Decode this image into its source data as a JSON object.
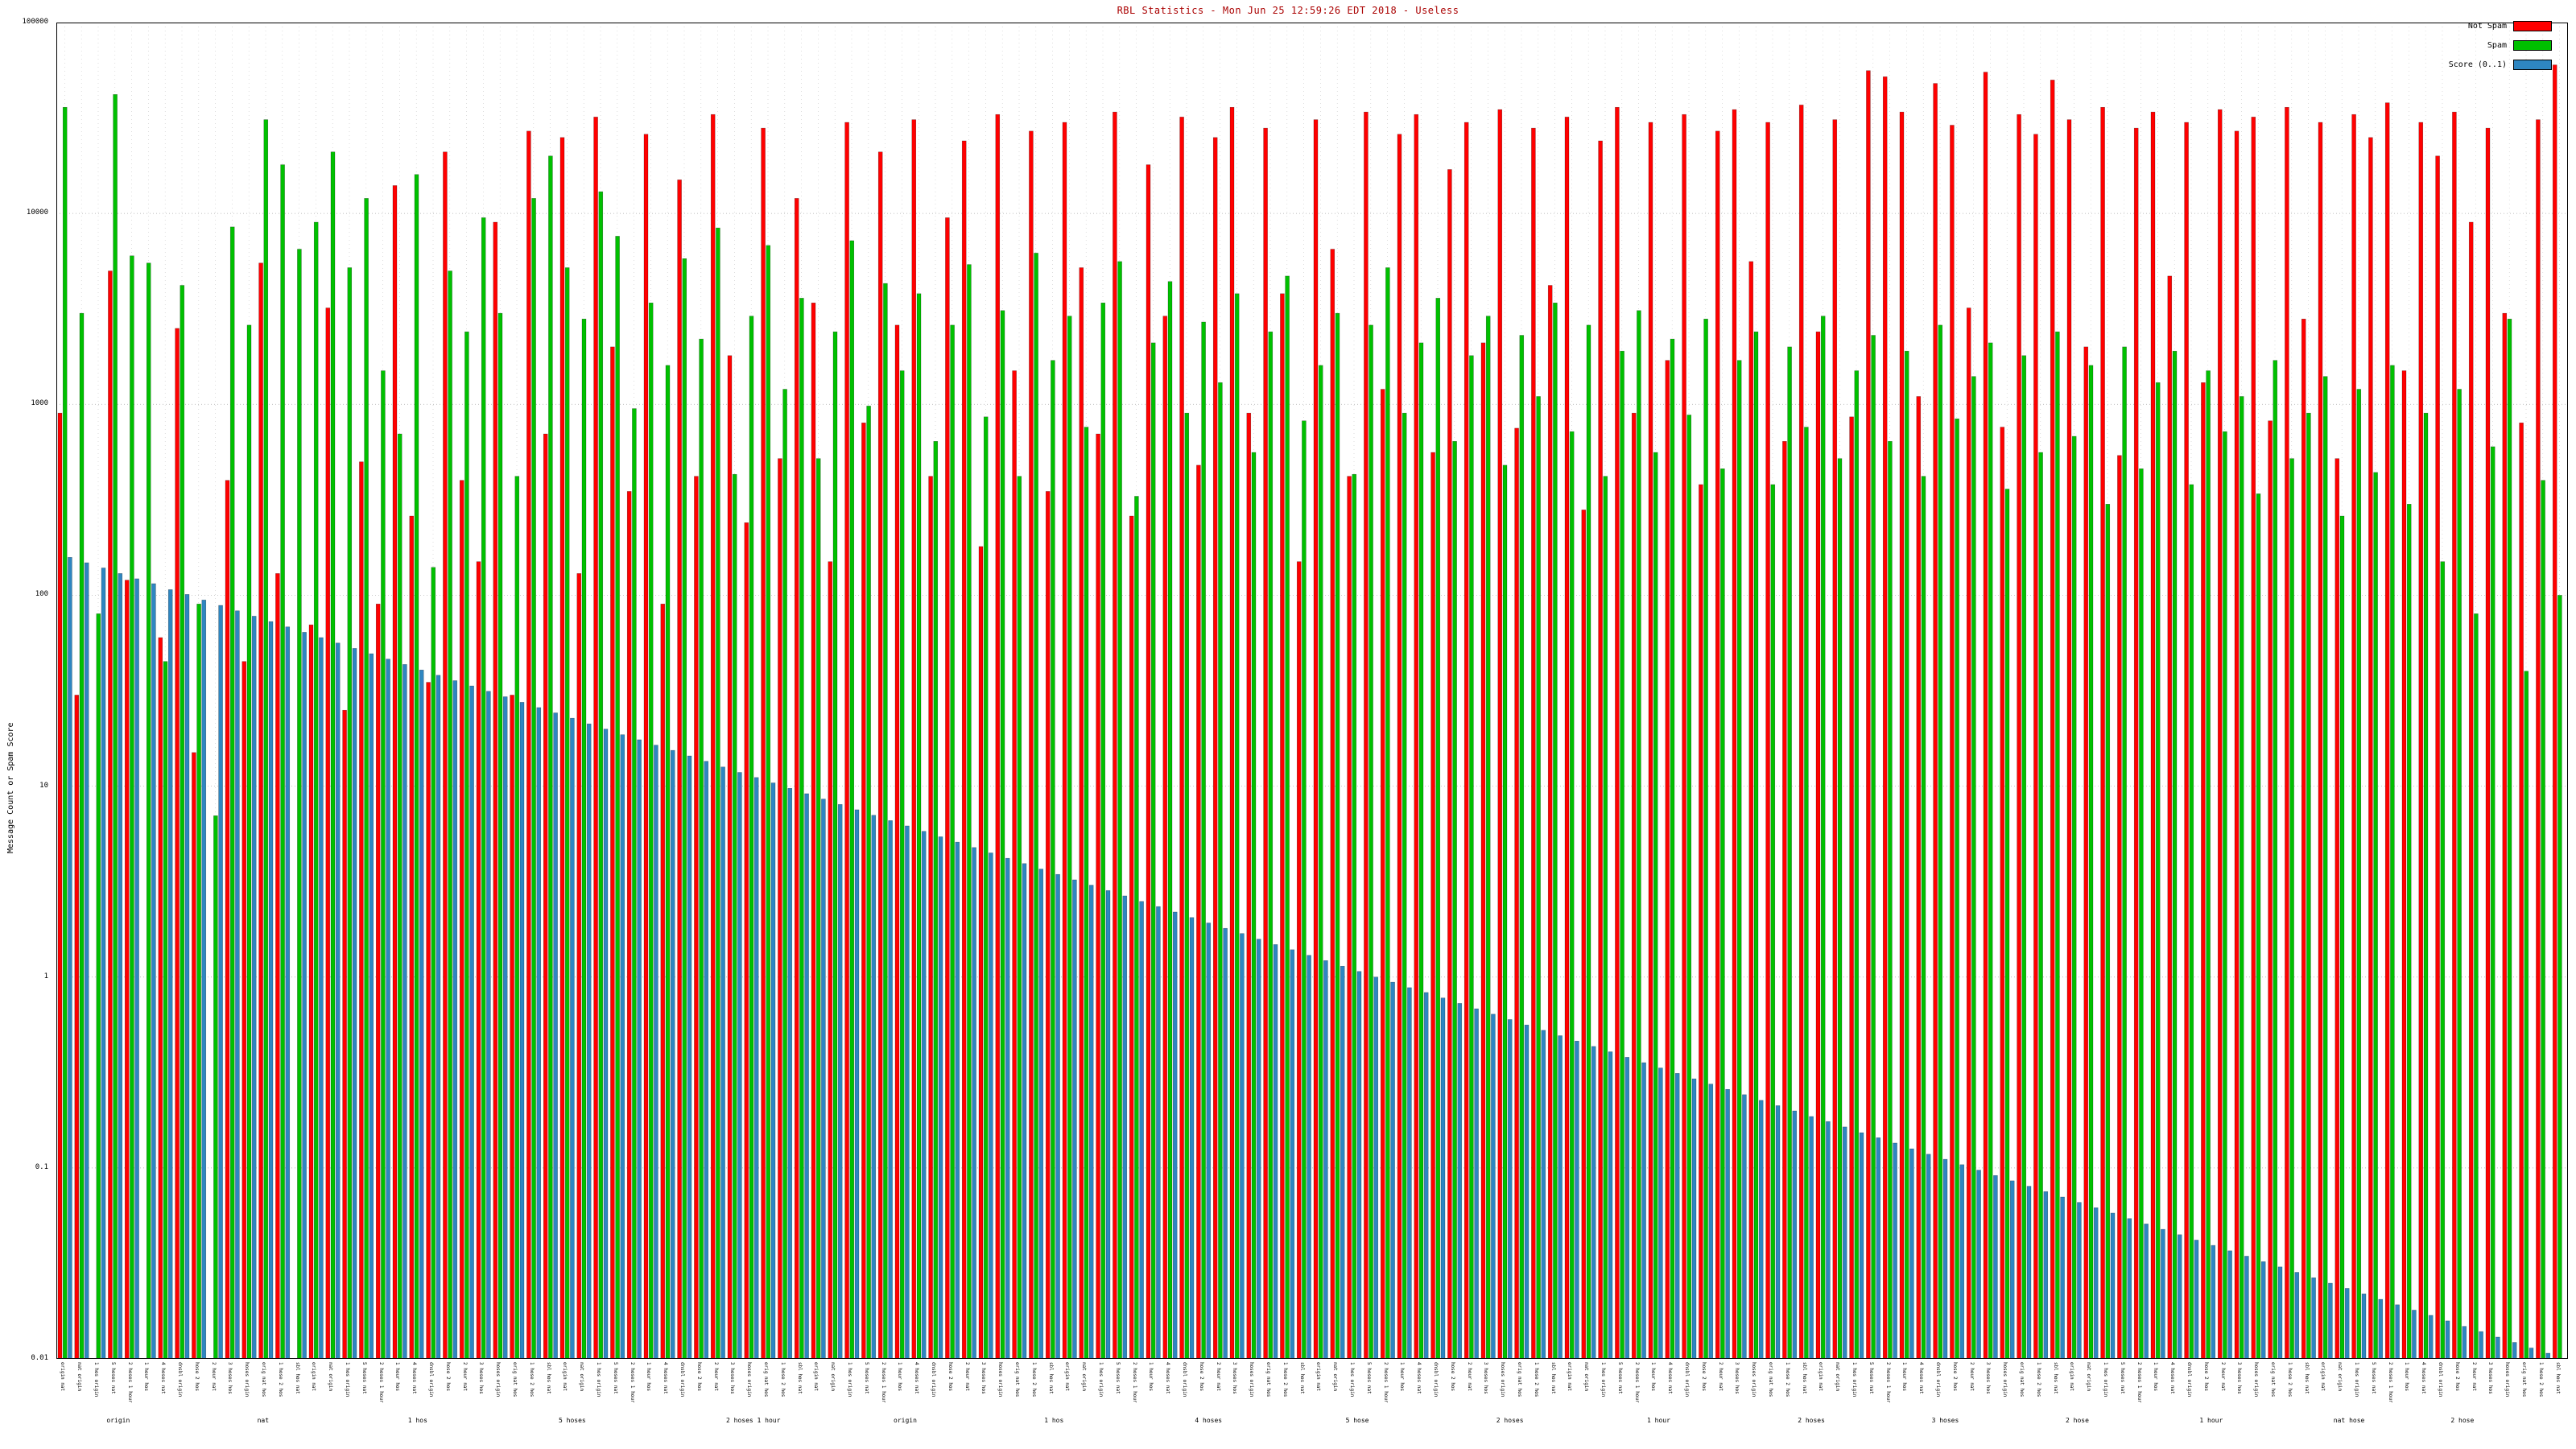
{
  "header": {
    "title": "RBL Statistics - Mon Jun 25 12:59:26 EDT 2018 - Useless"
  },
  "legend": {
    "entries": [
      {
        "label": "Not Spam",
        "color": "#ff0000"
      },
      {
        "label": "Spam",
        "color": "#00c000"
      },
      {
        "label": "Score (0..1)",
        "color": "#2e86c1"
      }
    ]
  },
  "axes": {
    "ylabel": "Message Count or Spam Score",
    "y_ticks": [
      "100000",
      "10000",
      "1000",
      "100",
      "10",
      "1",
      "0.1",
      "0.01"
    ]
  },
  "chart_data": {
    "type": "bar",
    "title": "RBL Statistics - Mon Jun 25 12:59:26 EDT 2018 - Useless",
    "xlabel": "",
    "ylabel": "Message Count or Spam Score",
    "yscale": "log",
    "ylim": [
      0.01,
      100000
    ],
    "grid": "dotted",
    "legend_position": "top-right",
    "categories": [
      "origin nat",
      "nat origin",
      "1 hos origin",
      "5 hoses nat",
      "2 hoses 1 hour",
      "1 hour hos",
      "4 hoses nat",
      "dnsbl origin",
      "hose 2 hos",
      "2 hour nat",
      "3 hoses hos",
      "hoses origin",
      "orig nat hos",
      "1 hose 2 hos",
      "sbl hos nat",
      "origin nat",
      "nat origin",
      "1 hos origin",
      "5 hoses nat",
      "2 hoses 1 hour",
      "1 hour hos",
      "4 hoses nat",
      "dnsbl origin",
      "hose 2 hos",
      "2 hour nat",
      "3 hoses hos",
      "hoses origin",
      "orig nat hos",
      "1 hose 2 hos",
      "sbl hos nat",
      "origin nat",
      "nat origin",
      "1 hos origin",
      "5 hoses nat",
      "2 hoses 1 hour",
      "1 hour hos",
      "4 hoses nat",
      "dnsbl origin",
      "hose 2 hos",
      "2 hour nat",
      "3 hoses hos",
      "hoses origin",
      "orig nat hos",
      "1 hose 2 hos",
      "sbl hos nat",
      "origin nat",
      "nat origin",
      "1 hos origin",
      "5 hoses nat",
      "2 hoses 1 hour",
      "1 hour hos",
      "4 hoses nat",
      "dnsbl origin",
      "hose 2 hos",
      "2 hour nat",
      "3 hoses hos",
      "hoses origin",
      "orig nat hos",
      "1 hose 2 hos",
      "sbl hos nat",
      "origin nat",
      "nat origin",
      "1 hos origin",
      "5 hoses nat",
      "2 hoses 1 hour",
      "1 hour hos",
      "4 hoses nat",
      "dnsbl origin",
      "hose 2 hos",
      "2 hour nat",
      "3 hoses hos",
      "hoses origin",
      "orig nat hos",
      "1 hose 2 hos",
      "sbl hos nat",
      "origin nat",
      "nat origin",
      "1 hos origin",
      "5 hoses nat",
      "2 hoses 1 hour",
      "1 hour hos",
      "4 hoses nat",
      "dnsbl origin",
      "hose 2 hos",
      "2 hour nat",
      "3 hoses hos",
      "hoses origin",
      "orig nat hos",
      "1 hose 2 hos",
      "sbl hos nat",
      "origin nat",
      "nat origin",
      "1 hos origin",
      "5 hoses nat",
      "2 hoses 1 hour",
      "1 hour hos",
      "4 hoses nat",
      "dnsbl origin",
      "hose 2 hos",
      "2 hour nat",
      "3 hoses hos",
      "hoses origin",
      "orig nat hos",
      "1 hose 2 hos",
      "sbl hos nat",
      "origin nat",
      "nat origin",
      "1 hos origin",
      "5 hoses nat",
      "2 hoses 1 hour",
      "1 hour hos",
      "4 hoses nat",
      "dnsbl origin",
      "hose 2 hos",
      "2 hour nat",
      "3 hoses hos",
      "hoses origin",
      "orig nat hos",
      "1 hose 2 hos",
      "sbl hos nat",
      "origin nat",
      "nat origin",
      "1 hos origin",
      "5 hoses nat",
      "2 hoses 1 hour",
      "1 hour hos",
      "4 hoses nat",
      "dnsbl origin",
      "hose 2 hos",
      "2 hour nat",
      "3 hoses hos",
      "hoses origin",
      "orig nat hos",
      "1 hose 2 hos",
      "sbl hos nat",
      "origin nat",
      "nat origin",
      "1 hos origin",
      "5 hoses nat",
      "2 hoses 1 hour",
      "1 hour hos",
      "4 hoses nat",
      "dnsbl origin",
      "hose 2 hos",
      "2 hour nat",
      "3 hoses hos",
      "hoses origin",
      "orig nat hos",
      "1 hose 2 hos",
      "sbl hos nat"
    ],
    "series": [
      {
        "name": "Not Spam",
        "color": "#ff0000",
        "values": [
          900,
          30,
          0,
          5000,
          120,
          0,
          60,
          2500,
          15,
          0,
          400,
          45,
          5500,
          130,
          0,
          70,
          3200,
          25,
          500,
          90,
          14000,
          260,
          35,
          21000,
          400,
          150,
          9000,
          30,
          27000,
          700,
          25000,
          130,
          32000,
          2000,
          350,
          26000,
          90,
          15000,
          420,
          33000,
          1800,
          240,
          28000,
          520,
          12000,
          3400,
          150,
          30000,
          800,
          21000,
          2600,
          31000,
          420,
          9500,
          24000,
          180,
          33000,
          1500,
          27000,
          350,
          30000,
          5200,
          700,
          34000,
          260,
          18000,
          2900,
          32000,
          480,
          25000,
          36000,
          900,
          28000,
          3800,
          150,
          31000,
          6500,
          420,
          34000,
          1200,
          26000,
          33000,
          560,
          17000,
          30000,
          2100,
          35000,
          750,
          28000,
          4200,
          32000,
          280,
          24000,
          36000,
          900,
          30000,
          1700,
          33000,
          380,
          27000,
          35000,
          5600,
          30000,
          640,
          37000,
          2400,
          31000,
          860,
          56000,
          52000,
          34000,
          1100,
          48000,
          29000,
          3200,
          55000,
          760,
          33000,
          26000,
          50000,
          31000,
          2000,
          36000,
          540,
          28000,
          34000,
          4700,
          30000,
          1300,
          35000,
          27000,
          32000,
          820,
          36000,
          2800,
          30000,
          520,
          33000,
          25000,
          38000,
          1500,
          30000,
          20000,
          34000,
          9000,
          28000,
          3000,
          800,
          31000,
          60000
        ]
      },
      {
        "name": "Spam",
        "color": "#00c000",
        "values": [
          36000,
          3000,
          80,
          42000,
          6000,
          5500,
          45,
          4200,
          90,
          7,
          8500,
          2600,
          31000,
          18000,
          6500,
          9000,
          21000,
          5200,
          12000,
          1500,
          700,
          16000,
          140,
          5000,
          2400,
          9500,
          3000,
          420,
          12000,
          20000,
          5200,
          2800,
          13000,
          7600,
          950,
          3400,
          1600,
          5800,
          2200,
          8400,
          430,
          2900,
          6800,
          1200,
          3600,
          520,
          2400,
          7200,
          980,
          4300,
          1500,
          3800,
          640,
          2600,
          5400,
          860,
          3100,
          420,
          6200,
          1700,
          2900,
          760,
          3400,
          5600,
          330,
          2100,
          4400,
          900,
          2700,
          1300,
          3800,
          560,
          2400,
          4700,
          820,
          1600,
          3000,
          430,
          2600,
          5200,
          900,
          2100,
          3600,
          640,
          1800,
          2900,
          480,
          2300,
          1100,
          3400,
          720,
          2600,
          420,
          1900,
          3100,
          560,
          2200,
          880,
          2800,
          460,
          1700,
          2400,
          380,
          2000,
          760,
          2900,
          520,
          1500,
          2300,
          640,
          1900,
          420,
          2600,
          840,
          1400,
          2100,
          360,
          1800,
          560,
          2400,
          680,
          1600,
          300,
          2000,
          460,
          1300,
          1900,
          380,
          1500,
          720,
          1100,
          340,
          1700,
          520,
          900,
          1400,
          260,
          1200,
          440,
          1600,
          300,
          900,
          150,
          1200,
          80,
          600,
          2800,
          40,
          400,
          100
        ]
      },
      {
        "name": "Score (0..1)",
        "color": "#2e86c1",
        "values": [
          158,
          148,
          139,
          130,
          122,
          115,
          107,
          101,
          94.4,
          88.5,
          82.9,
          77.7,
          72.8,
          68.3,
          64.0,
          60.0,
          56.2,
          52.7,
          49.4,
          46.3,
          43.4,
          40.6,
          38.1,
          35.7,
          33.5,
          31.4,
          29.4,
          27.5,
          25.8,
          24.2,
          22.7,
          21.2,
          19.9,
          18.6,
          17.5,
          16.4,
          15.4,
          14.4,
          13.5,
          12.6,
          11.8,
          11.1,
          10.4,
          9.74,
          9.13,
          8.56,
          8.02,
          7.52,
          7.04,
          6.6,
          6.19,
          5.8,
          5.43,
          5.09,
          4.77,
          4.47,
          4.19,
          3.93,
          3.68,
          3.45,
          3.23,
          3.03,
          2.84,
          2.66,
          2.49,
          2.34,
          2.19,
          2.05,
          1.92,
          1.8,
          1.69,
          1.58,
          1.48,
          1.39,
          1.3,
          1.22,
          1.14,
          1.07,
          1.0,
          0.94,
          0.88,
          0.83,
          0.777,
          0.728,
          0.682,
          0.639,
          0.599,
          0.561,
          0.526,
          0.493,
          0.462,
          0.433,
          0.406,
          0.38,
          0.356,
          0.334,
          0.313,
          0.293,
          0.275,
          0.258,
          0.242,
          0.226,
          0.212,
          0.199,
          0.186,
          0.175,
          0.164,
          0.153,
          0.144,
          0.135,
          0.126,
          0.118,
          0.111,
          0.104,
          0.0974,
          0.0913,
          0.0856,
          0.0802,
          0.0752,
          0.0704,
          0.066,
          0.0619,
          0.058,
          0.0543,
          0.0509,
          0.0477,
          0.0447,
          0.0419,
          0.0393,
          0.0368,
          0.0345,
          0.0323,
          0.0303,
          0.0284,
          0.0266,
          0.0249,
          0.0234,
          0.0219,
          0.0205,
          0.0192,
          0.018,
          0.0169,
          0.0158,
          0.0148,
          0.0139,
          0.013,
          0.0122,
          0.0114,
          0.0107,
          0.01
        ]
      }
    ],
    "x2_labels": [
      {
        "i": 3,
        "t": "origin"
      },
      {
        "i": 12,
        "t": "nat"
      },
      {
        "i": 21,
        "t": "1 hos"
      },
      {
        "i": 30,
        "t": "5 hoses"
      },
      {
        "i": 40,
        "t": "2 hoses 1 hour"
      },
      {
        "i": 50,
        "t": "origin"
      },
      {
        "i": 59,
        "t": "1 hos"
      },
      {
        "i": 68,
        "t": "4 hoses"
      },
      {
        "i": 77,
        "t": "5 hose"
      },
      {
        "i": 86,
        "t": "2 hoses"
      },
      {
        "i": 95,
        "t": "1 hour"
      },
      {
        "i": 104,
        "t": "2 hoses"
      },
      {
        "i": 112,
        "t": "3 hoses"
      },
      {
        "i": 120,
        "t": "2 hose"
      },
      {
        "i": 128,
        "t": "1 hour"
      },
      {
        "i": 136,
        "t": "nat hose"
      },
      {
        "i": 143,
        "t": "2 hose"
      }
    ]
  }
}
